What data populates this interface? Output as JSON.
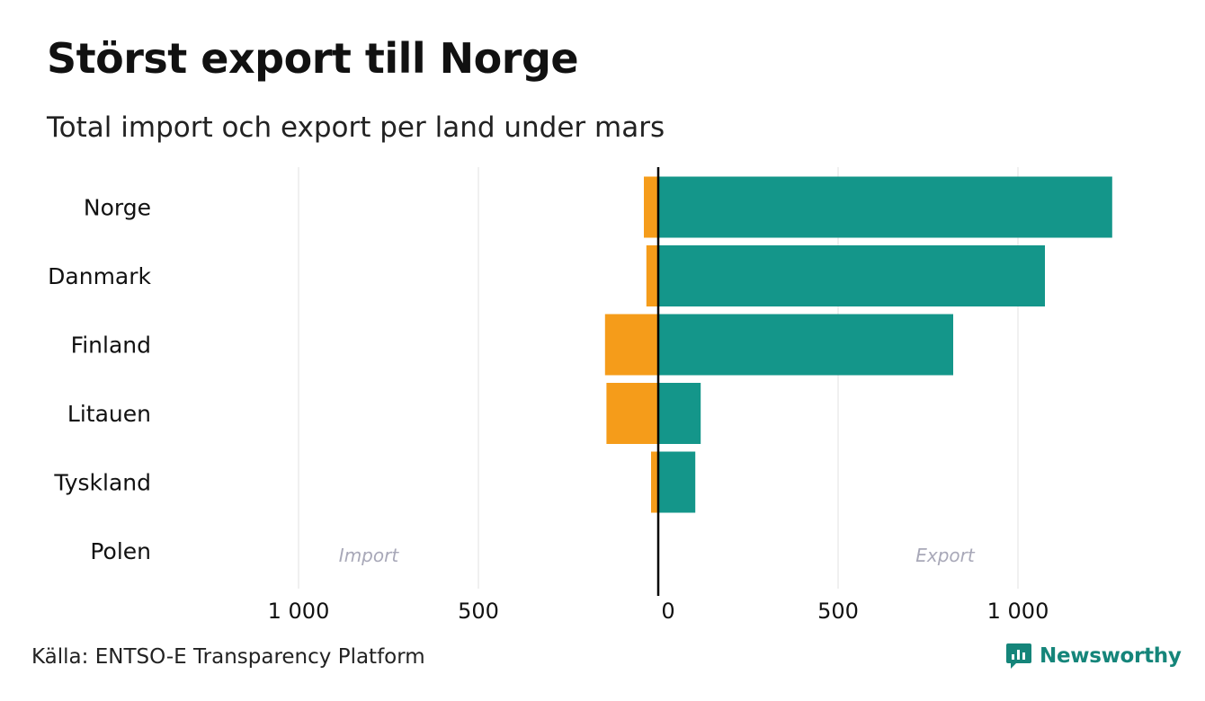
{
  "title": "Störst export till Norge",
  "subtitle": "Total import och export per land under mars",
  "source": "Källa: ENTSO-E Transparency Platform",
  "brand": {
    "name": "Newsworthy",
    "icon": "newsworthy-logo-icon"
  },
  "colors": {
    "import": "#F59C1A",
    "export": "#14968A",
    "grid": "#E5E5E5",
    "axis": "#000000",
    "direction_label": "#A8A8B8"
  },
  "chart_data": {
    "type": "bar",
    "orientation": "horizontal-diverging",
    "categories": [
      "Norge",
      "Danmark",
      "Finland",
      "Litauen",
      "Tyskland",
      "Polen"
    ],
    "series": [
      {
        "name": "Import",
        "values": [
          40,
          33,
          148,
          144,
          20,
          0
        ]
      },
      {
        "name": "Export",
        "values": [
          1262,
          1075,
          820,
          118,
          103,
          0
        ]
      }
    ],
    "xlim": [
      -1000,
      1000
    ],
    "ticks": [
      {
        "value": -1000,
        "label": "1 000"
      },
      {
        "value": -500,
        "label": "500"
      },
      {
        "value": 0,
        "label": "0"
      },
      {
        "value": 500,
        "label": "500"
      },
      {
        "value": 1000,
        "label": "1 000"
      }
    ],
    "direction_labels": {
      "left": "Import",
      "right": "Export"
    },
    "grid": true
  }
}
